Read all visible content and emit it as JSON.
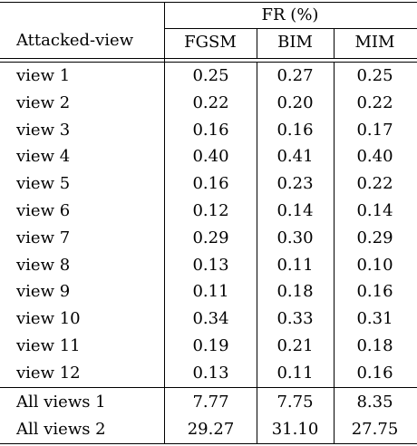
{
  "table": {
    "header": {
      "row_label": "Attacked-view",
      "group_label": "FR (%)",
      "columns": [
        "FGSM",
        "BIM",
        "MIM"
      ]
    },
    "rows": [
      {
        "label": "view 1",
        "values": [
          "0.25",
          "0.27",
          "0.25"
        ]
      },
      {
        "label": "view 2",
        "values": [
          "0.22",
          "0.20",
          "0.22"
        ]
      },
      {
        "label": "view 3",
        "values": [
          "0.16",
          "0.16",
          "0.17"
        ]
      },
      {
        "label": "view 4",
        "values": [
          "0.40",
          "0.41",
          "0.40"
        ]
      },
      {
        "label": "view 5",
        "values": [
          "0.16",
          "0.23",
          "0.22"
        ]
      },
      {
        "label": "view 6",
        "values": [
          "0.12",
          "0.14",
          "0.14"
        ]
      },
      {
        "label": "view 7",
        "values": [
          "0.29",
          "0.30",
          "0.29"
        ]
      },
      {
        "label": "view 8",
        "values": [
          "0.13",
          "0.11",
          "0.10"
        ]
      },
      {
        "label": "view 9",
        "values": [
          "0.11",
          "0.18",
          "0.16"
        ]
      },
      {
        "label": "view 10",
        "values": [
          "0.34",
          "0.33",
          "0.31"
        ]
      },
      {
        "label": "view 11",
        "values": [
          "0.19",
          "0.21",
          "0.18"
        ]
      },
      {
        "label": "view 12",
        "values": [
          "0.13",
          "0.11",
          "0.16"
        ]
      }
    ],
    "summary_rows": [
      {
        "label": "All views 1",
        "values": [
          "7.77",
          "7.75",
          "8.35"
        ]
      },
      {
        "label": "All views 2",
        "values": [
          "29.27",
          "31.10",
          "27.75"
        ]
      }
    ]
  }
}
